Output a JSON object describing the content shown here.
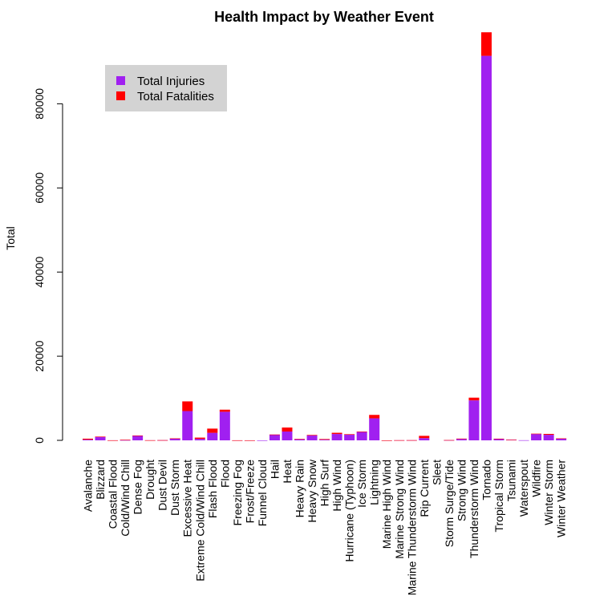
{
  "chart_data": {
    "type": "bar",
    "stacked": true,
    "title": "Health Impact by Weather Event",
    "xlabel": "",
    "ylabel": "Total",
    "ylim": [
      0,
      97000
    ],
    "yticks": [
      0,
      20000,
      40000,
      60000,
      80000
    ],
    "categories": [
      "Avalanche",
      "Blizzard",
      "Coastal Flood",
      "Cold/Wind Chill",
      "Dense Fog",
      "Drought",
      "Dust Devil",
      "Dust Storm",
      "Excessive Heat",
      "Extreme Cold/Wind Chill",
      "Flash Flood",
      "Flood",
      "Freezing Fog",
      "Frost/Freeze",
      "Funnel Cloud",
      "Hail",
      "Heat",
      "Heavy Rain",
      "Heavy Snow",
      "High Surf",
      "High Wind",
      "Hurricane (Typhoon)",
      "Ice Storm",
      "Lightning",
      "Marine High Wind",
      "Marine Strong Wind",
      "Marine Thunderstorm Wind",
      "Rip Current",
      "Sleet",
      "Storm Surge/Tide",
      "Strong Wind",
      "Thunderstorm Wind",
      "Tornado",
      "Tropical Storm",
      "Tsunami",
      "Waterspout",
      "Wildfire",
      "Winter Storm",
      "Winter Weather"
    ],
    "series": [
      {
        "name": "Total Injuries",
        "color": "#A020F0",
        "values": [
          170,
          805,
          10,
          50,
          1075,
          20,
          45,
          445,
          6960,
          350,
          1790,
          6790,
          5,
          5,
          5,
          1360,
          2100,
          250,
          1170,
          160,
          1510,
          1330,
          2000,
          5230,
          1,
          20,
          30,
          530,
          0,
          45,
          310,
          9500,
          91400,
          340,
          130,
          30,
          1500,
          1320,
          400
        ]
      },
      {
        "name": "Total Fatalities",
        "color": "#FF0000",
        "values": [
          225,
          100,
          5,
          120,
          80,
          5,
          5,
          25,
          2300,
          300,
          1000,
          500,
          10,
          5,
          0,
          20,
          950,
          100,
          130,
          150,
          290,
          130,
          90,
          820,
          5,
          15,
          15,
          540,
          0,
          20,
          110,
          650,
          5600,
          60,
          30,
          0,
          90,
          210,
          70
        ]
      }
    ],
    "legend": {
      "position": "top-left",
      "background": "#D3D3D3"
    },
    "grid": false
  }
}
